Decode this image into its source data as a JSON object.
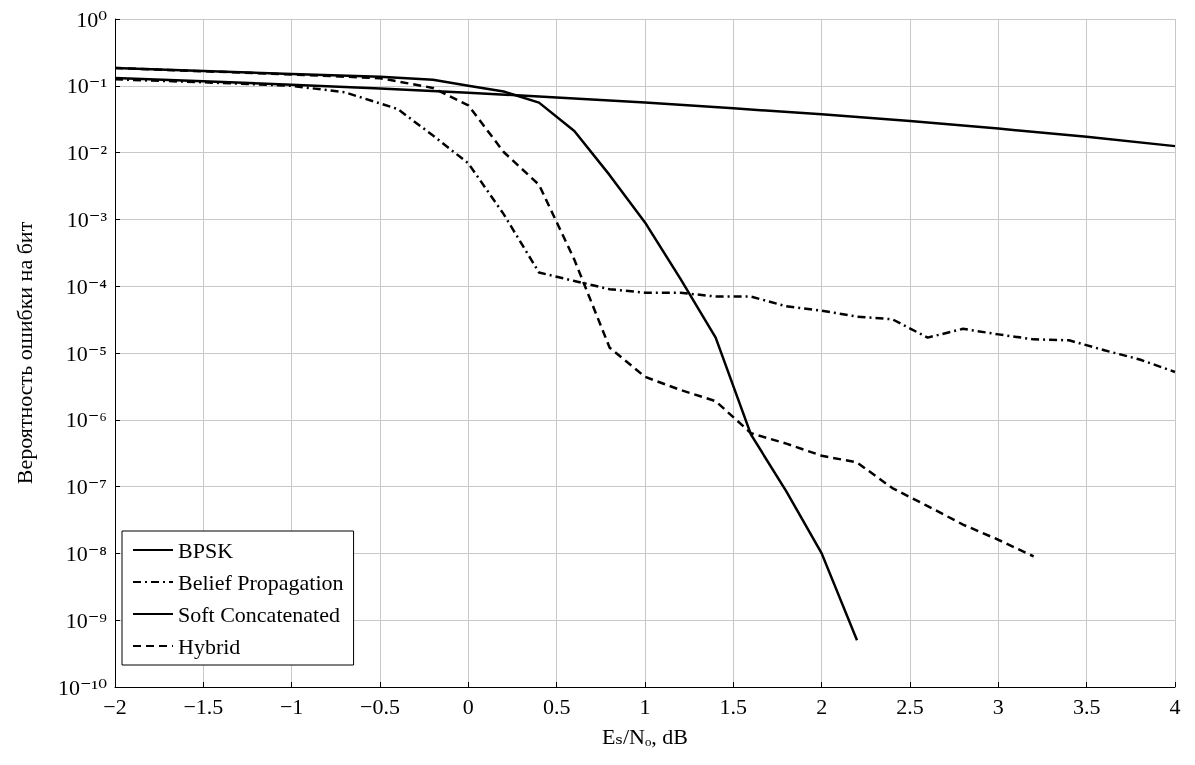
{
  "chart_data": {
    "type": "line",
    "xlabel": "Eₛ/Nₒ, dB",
    "ylabel": "Вероятность ошибки на бит",
    "log": "y",
    "grid": true,
    "legend": "bottom left",
    "marker": "none",
    "xlim": [
      -2,
      4
    ],
    "xticks": [
      {
        "value": -2,
        "label": "−2"
      },
      {
        "value": -1.5,
        "label": "−1.5"
      },
      {
        "value": -1,
        "label": "−1"
      },
      {
        "value": -0.5,
        "label": "−0.5"
      },
      0,
      0.5,
      1,
      1.5,
      2,
      2.5,
      3,
      3.5,
      4
    ],
    "ylim": [
      1e-10,
      1
    ],
    "yticks": [
      {
        "value": 1e-10,
        "label": "10⁻¹⁰"
      },
      {
        "value": 1e-09,
        "label": "10⁻⁹"
      },
      {
        "value": 1e-08,
        "label": "10⁻⁸"
      },
      {
        "value": 1e-07,
        "label": "10⁻⁷"
      },
      {
        "value": 1e-06,
        "label": "10⁻⁶"
      },
      {
        "value": 1e-05,
        "label": "10⁻⁵"
      },
      {
        "value": 0.0001,
        "label": "10⁻⁴"
      },
      {
        "value": 0.001,
        "label": "10⁻³"
      },
      {
        "value": 0.01,
        "label": "10⁻²"
      },
      {
        "value": 0.1,
        "label": "10⁻¹"
      },
      {
        "value": 1,
        "label": "10⁰"
      }
    ],
    "series": [
      {
        "name": "BPSK",
        "color": "#000000",
        "line_style": "solid",
        "x": [
          -2,
          -1.5,
          -1,
          -0.5,
          0,
          0.5,
          1,
          1.5,
          2,
          2.5,
          3,
          3.5,
          4
        ],
        "values": [
          0.131,
          0.117,
          0.104,
          0.091,
          0.079,
          0.067,
          0.056,
          0.046,
          0.0375,
          0.0297,
          0.0229,
          0.0172,
          0.0125
        ]
      },
      {
        "name": "Belief Propagation",
        "color": "#000000",
        "line_style": "dashdot",
        "x": [
          -2,
          -1.5,
          -1,
          -0.7,
          -0.4,
          -0.2,
          0,
          0.2,
          0.4,
          0.6,
          0.8,
          1,
          1.2,
          1.4,
          1.6,
          1.8,
          2,
          2.2,
          2.4,
          2.6,
          2.8,
          3,
          3.2,
          3.4,
          3.6,
          3.8,
          4
        ],
        "values": [
          0.125,
          0.113,
          0.1,
          0.08,
          0.045,
          0.018,
          0.0069,
          0.0012,
          0.00016,
          0.00012,
          9e-05,
          8e-05,
          8e-05,
          7e-05,
          7e-05,
          5e-05,
          4.3e-05,
          3.5e-05,
          3.2e-05,
          1.7e-05,
          2.3e-05,
          1.9e-05,
          1.6e-05,
          1.55e-05,
          1.1e-05,
          8e-06,
          5.2e-06
        ]
      },
      {
        "name": "Soft Concatenated",
        "color": "#000000",
        "line_style": "solid",
        "x": [
          -2,
          -1.5,
          -1,
          -0.5,
          -0.2,
          0,
          0.2,
          0.4,
          0.6,
          0.8,
          1,
          1.2,
          1.4,
          1.6,
          1.8,
          2,
          2.2
        ],
        "values": [
          0.185,
          0.166,
          0.15,
          0.137,
          0.123,
          0.1,
          0.082,
          0.056,
          0.021,
          0.0046,
          0.0009,
          0.00013,
          1.7e-05,
          6e-07,
          8.5e-08,
          1e-08,
          5e-10
        ]
      },
      {
        "name": "Hybrid",
        "color": "#000000",
        "line_style": "dashed",
        "x": [
          -2,
          -1.5,
          -1,
          -0.5,
          -0.2,
          0,
          0.2,
          0.4,
          0.6,
          0.8,
          1,
          1.2,
          1.4,
          1.6,
          1.8,
          2,
          2.2,
          2.4,
          2.6,
          2.8,
          3,
          3.2
        ],
        "values": [
          0.185,
          0.165,
          0.148,
          0.13,
          0.093,
          0.051,
          0.0102,
          0.0033,
          0.00025,
          1.2e-05,
          4.4e-06,
          2.8e-06,
          1.9e-06,
          6.3e-07,
          4.4e-07,
          2.9e-07,
          2.3e-07,
          9.5e-08,
          5.1e-08,
          2.7e-08,
          1.6e-08,
          9e-09
        ]
      }
    ]
  }
}
